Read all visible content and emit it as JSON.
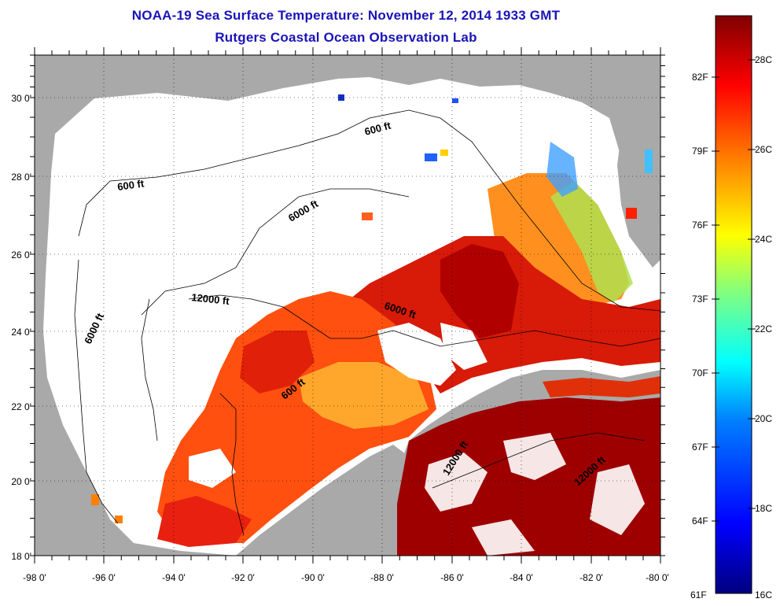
{
  "header": {
    "title": "NOAA-19 Sea Surface Temperature:  November 12, 2014 1933 GMT",
    "subtitle": "Rutgers Coastal Ocean Observation Lab"
  },
  "map": {
    "x_ticks": [
      "-98 0'",
      "-96 0'",
      "-94 0'",
      "-92 0'",
      "-90 0'",
      "-88 0'",
      "-86 0'",
      "-84 0'",
      "-82 0'",
      "-80 0'"
    ],
    "y_ticks": [
      "30 0'",
      "28 0'",
      "26 0'",
      "24 0'",
      "22 0'",
      "20 0'",
      "18 0'"
    ],
    "contour_labels": [
      "600 ft",
      "600 ft",
      "6000 ft",
      "6000 ft",
      "12000 ft",
      "6000 ft",
      "600 ft",
      "12000 ft",
      "12000 ft"
    ],
    "land_color": "#a9a9a9",
    "ocean_color": "#ffffff"
  },
  "colorbar": {
    "f_labels": [
      "82F",
      "79F",
      "76F",
      "73F",
      "70F",
      "67F",
      "64F",
      "61F"
    ],
    "c_labels": [
      "28C",
      "26C",
      "24C",
      "22C",
      "20C",
      "18C",
      "16C"
    ],
    "colors": [
      "#00007f",
      "#0000ff",
      "#0080ff",
      "#00ffff",
      "#80ff80",
      "#ffff00",
      "#ff8000",
      "#ff0000",
      "#7f0000"
    ]
  }
}
